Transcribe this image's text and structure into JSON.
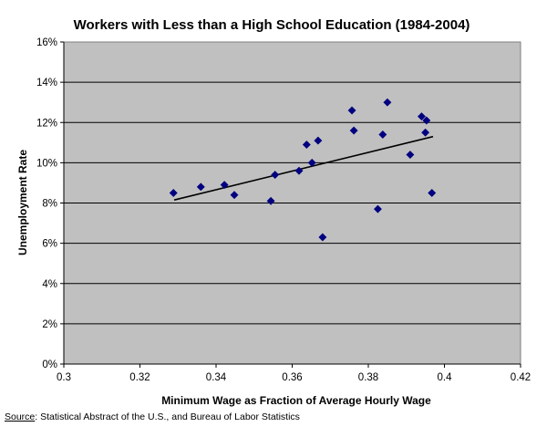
{
  "chart_data": {
    "type": "scatter",
    "title": "Workers with Less than a High School Education (1984-2004)",
    "xlabel": "Minimum Wage as Fraction of Average Hourly Wage",
    "ylabel": "Unemployment Rate",
    "xlim": [
      0.3,
      0.42
    ],
    "ylim": [
      0,
      16
    ],
    "x_ticks": [
      "0.3",
      "0.32",
      "0.34",
      "0.36",
      "0.38",
      "0.4",
      "0.42"
    ],
    "y_ticks": [
      "0%",
      "2%",
      "4%",
      "6%",
      "8%",
      "10%",
      "12%",
      "14%",
      "16%"
    ],
    "grid": "horizontal",
    "plot_background": "#c0c0c0",
    "marker_color": "#000080",
    "trendline_color": "#000000",
    "series": [
      {
        "points": [
          [
            0.3288,
            8.5
          ],
          [
            0.336,
            8.8
          ],
          [
            0.3422,
            8.9
          ],
          [
            0.3448,
            8.4
          ],
          [
            0.3544,
            8.1
          ],
          [
            0.3555,
            9.4
          ],
          [
            0.3618,
            9.6
          ],
          [
            0.3638,
            10.9
          ],
          [
            0.3652,
            10.0
          ],
          [
            0.3668,
            11.1
          ],
          [
            0.368,
            6.3
          ],
          [
            0.3757,
            12.6
          ],
          [
            0.3762,
            11.6
          ],
          [
            0.3825,
            7.7
          ],
          [
            0.3838,
            11.4
          ],
          [
            0.385,
            13.0
          ],
          [
            0.391,
            10.4
          ],
          [
            0.394,
            12.3
          ],
          [
            0.395,
            11.5
          ],
          [
            0.3953,
            12.1
          ],
          [
            0.3967,
            8.5
          ]
        ]
      }
    ],
    "trendline": {
      "x": [
        0.329,
        0.397
      ],
      "y": [
        8.15,
        11.3
      ]
    }
  },
  "source": {
    "label": "Source",
    "text": ": Statistical Abstract of the U.S., and Bureau of Labor Statistics"
  }
}
